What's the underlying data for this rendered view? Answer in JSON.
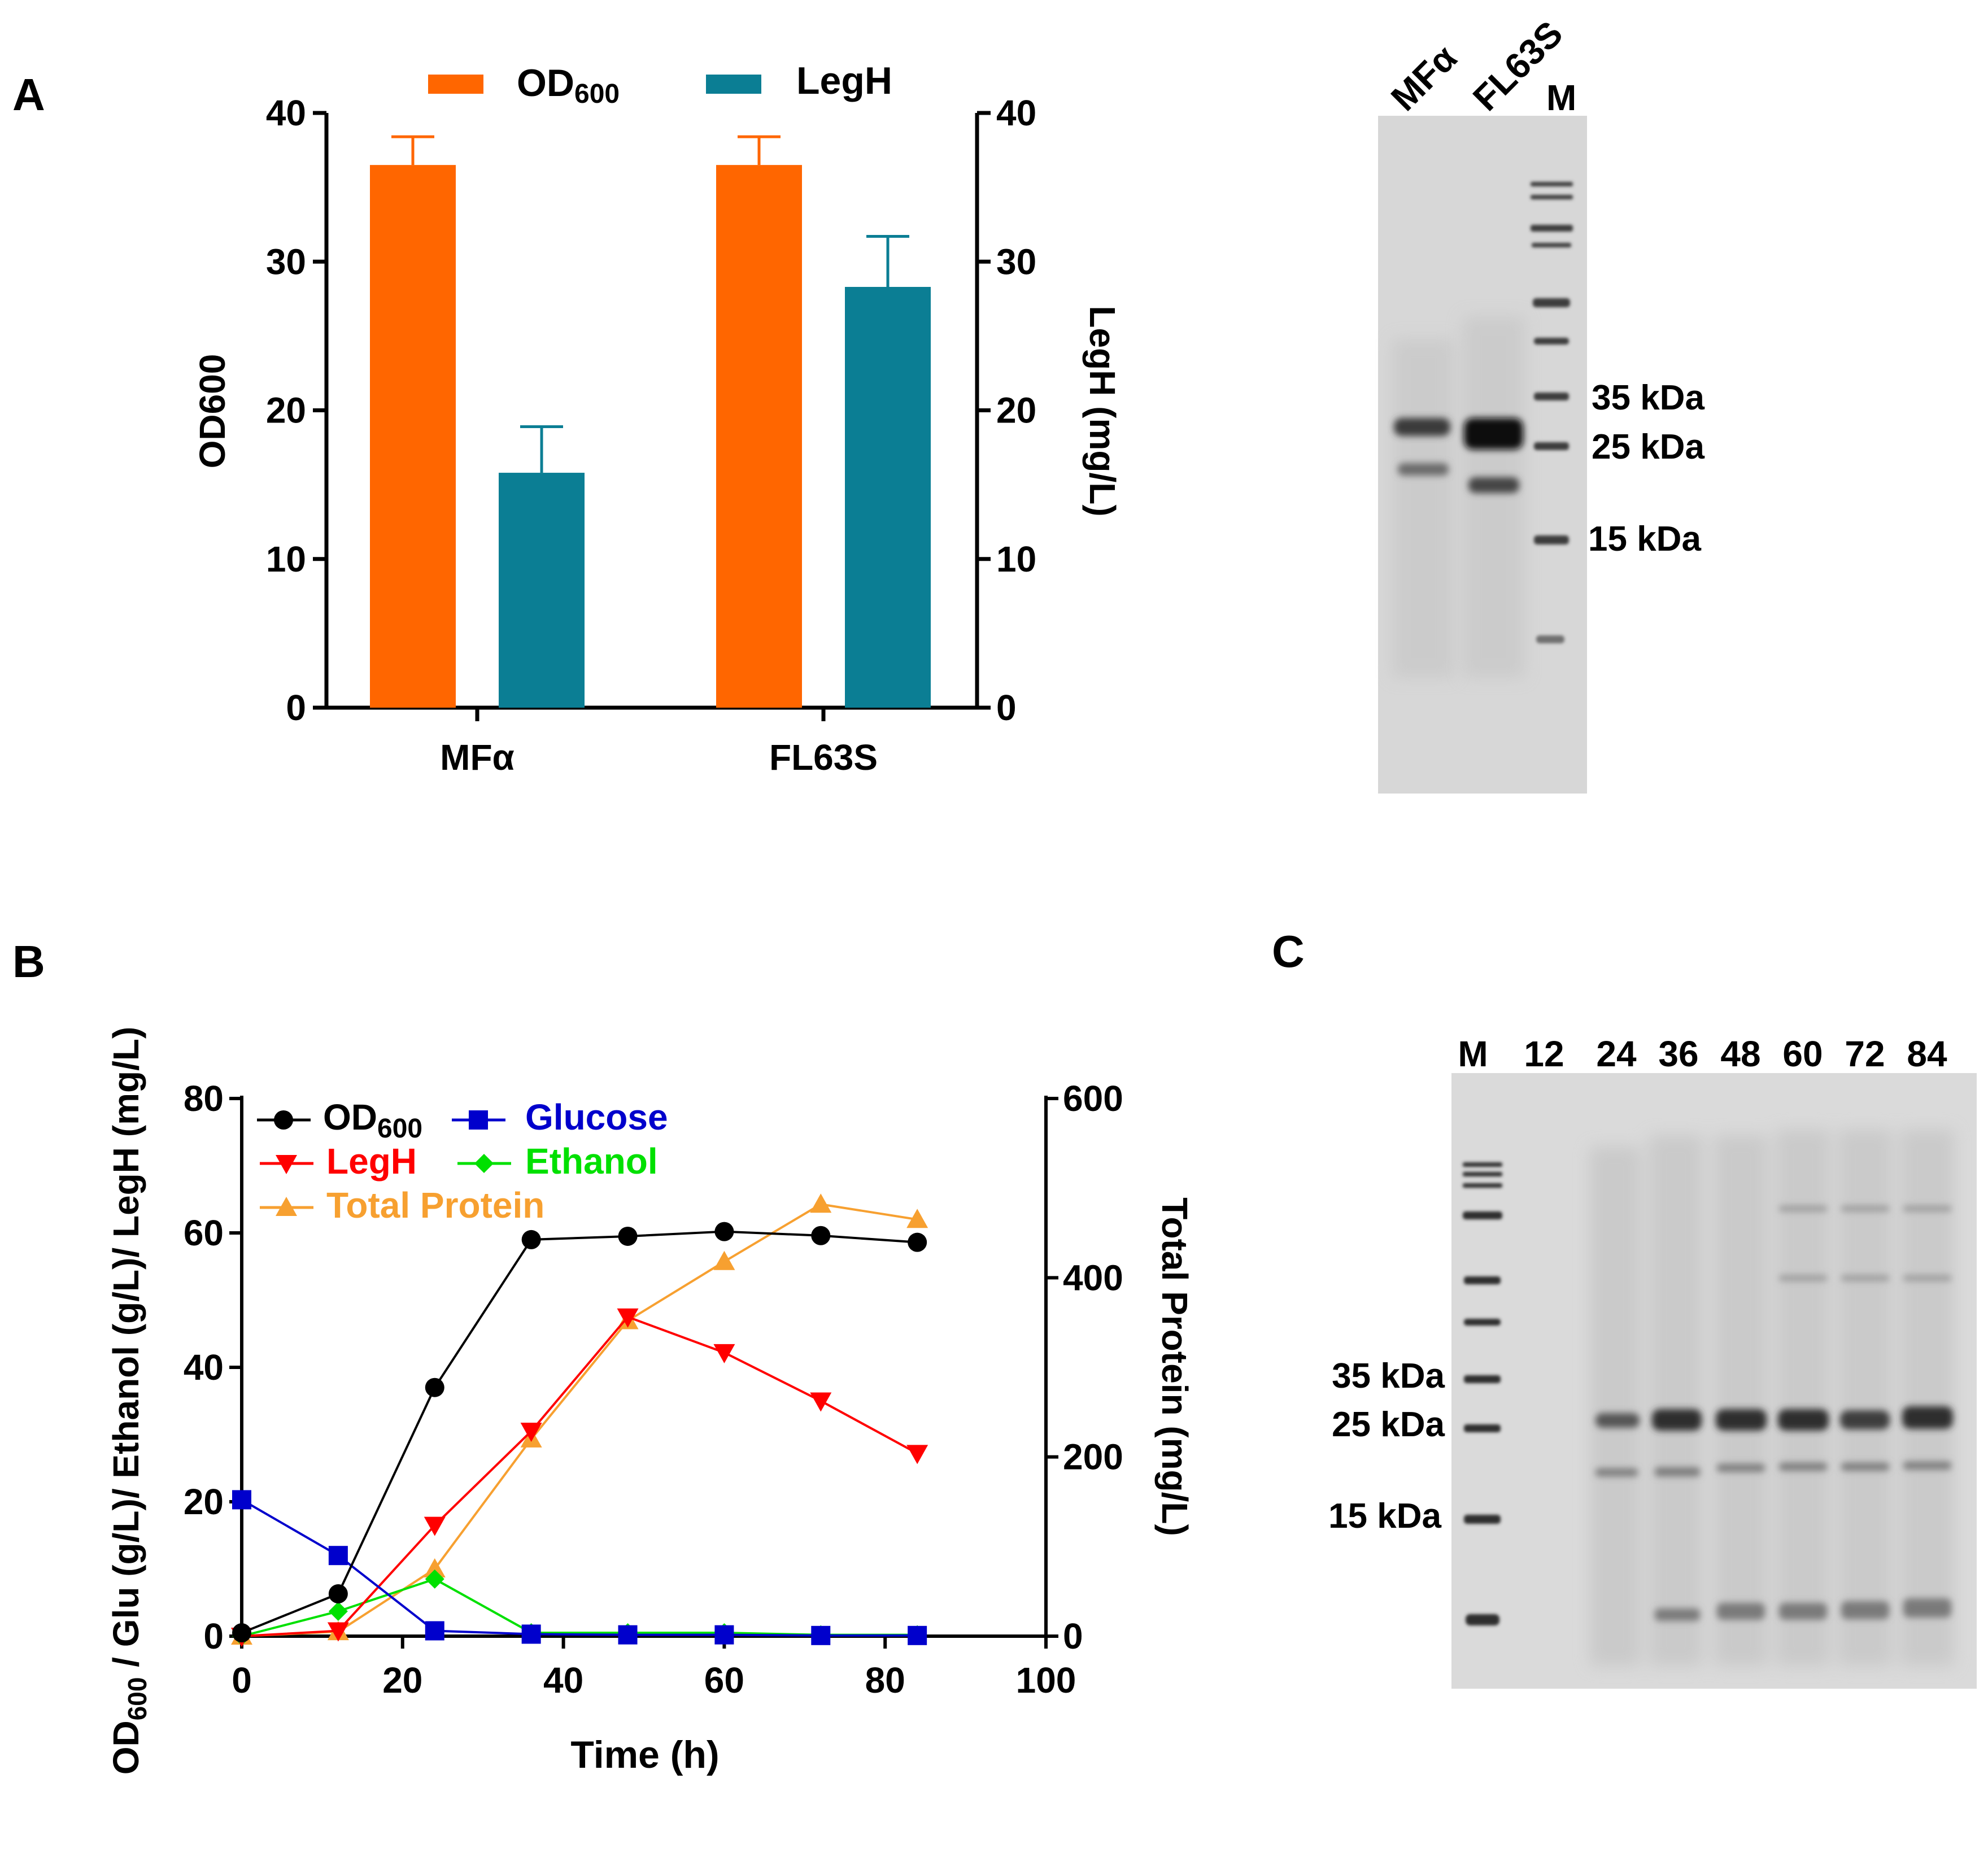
{
  "panels": {
    "a": "A",
    "b": "B",
    "c": "C"
  },
  "colors": {
    "od": "#ff6600",
    "legh_bar": "#0b7e94",
    "od_line": "#000000",
    "glucose": "#0000cc",
    "legh_line": "#ff0000",
    "ethanol": "#00e000",
    "total_protein": "#f7a030"
  },
  "chart_data": [
    {
      "id": "panel-a-bar",
      "type": "bar",
      "categories": [
        "MFα",
        "FL63S"
      ],
      "series": [
        {
          "name": "OD600",
          "legend_main": "OD",
          "legend_sub": "600",
          "axis": "left",
          "values": [
            36.5,
            36.5
          ],
          "errors": [
            1.9,
            1.9
          ]
        },
        {
          "name": "LegH",
          "legend_main": "LegH",
          "legend_sub": "",
          "axis": "right",
          "values": [
            15.8,
            28.3
          ],
          "errors": [
            3.1,
            3.4
          ]
        }
      ],
      "ylabel": "OD600",
      "y2label": "LegH (mg/L)",
      "ylim": [
        0,
        40
      ],
      "y2lim": [
        0,
        40
      ],
      "yticks": [
        0,
        10,
        20,
        30,
        40
      ],
      "y2ticks": [
        0,
        10,
        20,
        30,
        40
      ],
      "legend": "top"
    },
    {
      "id": "panel-b-line",
      "type": "line",
      "x": [
        0,
        12,
        24,
        36,
        48,
        60,
        72,
        84
      ],
      "series": [
        {
          "name": "OD600",
          "legend_main": "OD",
          "legend_sub": "600",
          "marker": "circle",
          "axis": "left",
          "values": [
            0.5,
            6.3,
            37,
            59,
            59.5,
            60.2,
            59.6,
            58.6
          ]
        },
        {
          "name": "Glucose",
          "legend_main": "Glucose",
          "legend_sub": "",
          "marker": "square",
          "axis": "left",
          "values": [
            20.3,
            12,
            0.8,
            0.3,
            0.2,
            0.2,
            0.1,
            0.1
          ]
        },
        {
          "name": "LegH",
          "legend_main": "LegH",
          "legend_sub": "",
          "marker": "triangle-down",
          "axis": "left",
          "values": [
            0,
            0.8,
            16.5,
            30.5,
            47.5,
            42.2,
            35,
            27.2
          ]
        },
        {
          "name": "Ethanol",
          "legend_main": "Ethanol",
          "legend_sub": "",
          "marker": "diamond",
          "axis": "left",
          "values": [
            0,
            3.7,
            8.5,
            0.5,
            0.5,
            0.5,
            0.2,
            0.2
          ]
        },
        {
          "name": "Total Protein",
          "legend_main": "Total Protein",
          "legend_sub": "",
          "marker": "triangle-up",
          "axis": "right",
          "values": [
            0,
            5,
            75,
            220,
            352,
            418,
            482,
            465
          ]
        }
      ],
      "xlabel": "Time (h)",
      "ylabel_main": "OD",
      "ylabel_sub": "600",
      "ylabel_rest": " / Glu (g/L)/ Ethanol (g/L)/ LegH (mg/L)",
      "y2label": "Total Protein (mg/L)",
      "xlim": [
        0,
        100
      ],
      "ylim": [
        0,
        80
      ],
      "y2lim": [
        0,
        600
      ],
      "xticks": [
        0,
        20,
        40,
        60,
        80,
        100
      ],
      "yticks": [
        0,
        20,
        40,
        60,
        80
      ],
      "y2ticks": [
        0,
        200,
        400,
        600
      ],
      "legend": "top-left"
    }
  ],
  "gel_a": {
    "lanes": [
      "MFα",
      "FL63S",
      "M"
    ],
    "markers": [
      "35 kDa",
      "25 kDa",
      "15 kDa"
    ]
  },
  "gel_c": {
    "lanes": [
      "M",
      "12",
      "24",
      "36",
      "48",
      "60",
      "72",
      "84"
    ],
    "markers": [
      "35 kDa",
      "25 kDa",
      "15 kDa"
    ]
  }
}
